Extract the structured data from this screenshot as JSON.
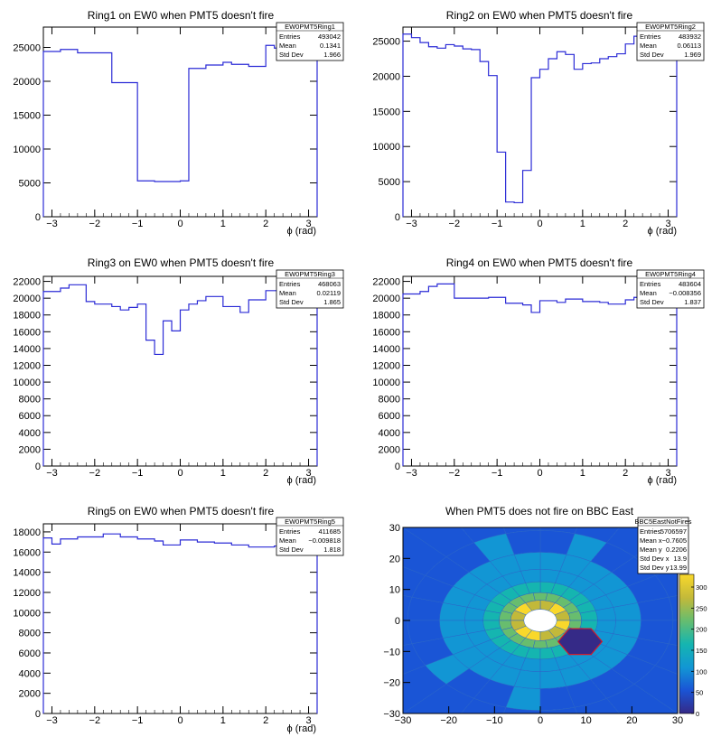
{
  "chart_data": [
    {
      "type": "histogram",
      "title": "Ring1 on EW0 when PMT5 doesn't fire",
      "xlabel": "ϕ (rad)",
      "xlim": [
        -3.2,
        3.2
      ],
      "ylim": [
        0,
        28000
      ],
      "xticks": [
        "−3",
        "−2",
        "−1",
        "0",
        "1",
        "2",
        "3"
      ],
      "yticks": [
        "0",
        "5000",
        "10000",
        "15000",
        "20000",
        "25000"
      ],
      "bin_edges": [
        -3.2,
        -2.8,
        -2.4,
        -1.6,
        -1.0,
        -0.6,
        0.0,
        0.2,
        0.6,
        1.0,
        1.2,
        1.6,
        2.0,
        2.2,
        2.8,
        3.2
      ],
      "values": [
        24400,
        24700,
        24200,
        19800,
        5300,
        5200,
        5300,
        21900,
        22400,
        22800,
        22500,
        22200,
        25300,
        24900,
        24800
      ],
      "stats": {
        "name": "EW0PMT5Ring1",
        "rows": [
          [
            "Entries",
            "493042"
          ],
          [
            "Mean",
            "0.1341"
          ],
          [
            "Std Dev",
            "1.966"
          ]
        ]
      }
    },
    {
      "type": "histogram",
      "title": "Ring2 on EW0 when PMT5 doesn't fire",
      "xlabel": "ϕ (rad)",
      "xlim": [
        -3.2,
        3.2
      ],
      "ylim": [
        0,
        27000
      ],
      "xticks": [
        "−3",
        "−2",
        "−1",
        "0",
        "1",
        "2",
        "3"
      ],
      "yticks": [
        "0",
        "5000",
        "10000",
        "15000",
        "20000",
        "25000"
      ],
      "bin_edges": [
        -3.2,
        -3.0,
        -2.8,
        -2.6,
        -2.4,
        -2.2,
        -2.0,
        -1.8,
        -1.6,
        -1.4,
        -1.2,
        -1.0,
        -0.8,
        -0.6,
        -0.4,
        -0.2,
        0.0,
        0.2,
        0.4,
        0.6,
        0.8,
        1.0,
        1.2,
        1.4,
        1.6,
        1.8,
        2.0,
        2.2,
        2.4,
        2.6,
        2.8,
        3.0,
        3.2
      ],
      "values": [
        26000,
        25500,
        24800,
        24200,
        24000,
        24500,
        24300,
        23900,
        23800,
        22100,
        20100,
        9200,
        2100,
        2000,
        6600,
        19800,
        21000,
        22500,
        23500,
        23100,
        21000,
        21800,
        21900,
        22500,
        22800,
        23200,
        24600,
        25700,
        25200,
        25000,
        24800,
        24500
      ],
      "stats": {
        "name": "EW0PMT5Ring2",
        "rows": [
          [
            "Entries",
            "483932"
          ],
          [
            "Mean",
            "0.06113"
          ],
          [
            "Std Dev",
            "1.969"
          ]
        ]
      }
    },
    {
      "type": "histogram",
      "title": "Ring3 on EW0 when PMT5 doesn't fire",
      "xlabel": "ϕ (rad)",
      "xlim": [
        -3.2,
        3.2
      ],
      "ylim": [
        0,
        22600
      ],
      "xticks": [
        "−3",
        "−2",
        "−1",
        "0",
        "1",
        "2",
        "3"
      ],
      "yticks": [
        "0",
        "2000",
        "4000",
        "6000",
        "8000",
        "10000",
        "12000",
        "14000",
        "16000",
        "18000",
        "20000",
        "22000"
      ],
      "bin_edges": [
        -3.2,
        -2.8,
        -2.6,
        -2.2,
        -2.0,
        -1.6,
        -1.4,
        -1.2,
        -1.0,
        -0.8,
        -0.6,
        -0.4,
        -0.2,
        0.0,
        0.2,
        0.4,
        0.6,
        1.0,
        1.4,
        1.6,
        2.0,
        2.4,
        2.8,
        3.2
      ],
      "values": [
        20800,
        21200,
        21600,
        19600,
        19300,
        19000,
        18600,
        18900,
        19300,
        15000,
        13300,
        17300,
        16100,
        18600,
        19300,
        19700,
        20200,
        19000,
        18300,
        19800,
        20900,
        20500,
        21000
      ],
      "stats": {
        "name": "EW0PMT5Ring3",
        "rows": [
          [
            "Entries",
            "468063"
          ],
          [
            "Mean",
            "0.02119"
          ],
          [
            "Std Dev",
            "1.865"
          ]
        ]
      }
    },
    {
      "type": "histogram",
      "title": "Ring4 on EW0 when PMT5 doesn't fire",
      "xlabel": "ϕ (rad)",
      "xlim": [
        -3.2,
        3.2
      ],
      "ylim": [
        0,
        22600
      ],
      "xticks": [
        "−3",
        "−2",
        "−1",
        "0",
        "1",
        "2",
        "3"
      ],
      "yticks": [
        "0",
        "2000",
        "4000",
        "6000",
        "8000",
        "10000",
        "12000",
        "14000",
        "16000",
        "18000",
        "20000",
        "22000"
      ],
      "bin_edges": [
        -3.2,
        -2.8,
        -2.6,
        -2.4,
        -2.0,
        -1.2,
        -0.8,
        -0.4,
        -0.2,
        0.0,
        0.4,
        0.6,
        1.0,
        1.4,
        1.6,
        2.0,
        2.2,
        2.6,
        3.2
      ],
      "values": [
        20500,
        20800,
        21400,
        21700,
        20000,
        20100,
        19400,
        19200,
        18300,
        19700,
        19500,
        19900,
        19600,
        19500,
        19300,
        19800,
        20100,
        20300
      ],
      "stats": {
        "name": "EW0PMT5Ring4",
        "rows": [
          [
            "Entries",
            "483604"
          ],
          [
            "Mean",
            "−0.008356"
          ],
          [
            "Std Dev",
            "1.837"
          ]
        ]
      }
    },
    {
      "type": "histogram",
      "title": "Ring5 on EW0 when PMT5 doesn't fire",
      "xlabel": "ϕ (rad)",
      "xlim": [
        -3.2,
        3.2
      ],
      "ylim": [
        0,
        18800
      ],
      "xticks": [
        "−3",
        "−2",
        "−1",
        "0",
        "1",
        "2",
        "3"
      ],
      "yticks": [
        "0",
        "2000",
        "4000",
        "6000",
        "8000",
        "10000",
        "12000",
        "14000",
        "16000",
        "18000"
      ],
      "bin_edges": [
        -3.2,
        -3.0,
        -2.8,
        -2.4,
        -1.8,
        -1.4,
        -1.0,
        -0.6,
        -0.4,
        0.0,
        0.4,
        0.8,
        1.2,
        1.6,
        2.2,
        2.4,
        3.2
      ],
      "values": [
        17400,
        16800,
        17300,
        17500,
        17800,
        17500,
        17300,
        17100,
        16700,
        17200,
        17000,
        16900,
        16700,
        16500,
        16600,
        17400
      ],
      "stats": {
        "name": "EW0PMT5Ring5",
        "rows": [
          [
            "Entries",
            "411685"
          ],
          [
            "Mean",
            "−0.009818"
          ],
          [
            "Std Dev",
            "1.818"
          ]
        ]
      }
    },
    {
      "type": "heatmap",
      "title": "When PMT5 does not fire on BBC East",
      "xlim": [
        -30,
        30
      ],
      "ylim": [
        -30,
        30
      ],
      "xticks": [
        "−30",
        "−20",
        "−10",
        "0",
        "10",
        "20",
        "30"
      ],
      "yticks": [
        "−30",
        "−20",
        "−10",
        "0",
        "10",
        "20",
        "30"
      ],
      "zlim": [
        0,
        330
      ],
      "zticks": [
        "0",
        "50",
        "100",
        "150",
        "200",
        "250",
        "300"
      ],
      "colors": [
        "#352a87",
        "#1a55d6",
        "#1296d4",
        "#15b5b0",
        "#68bd6e",
        "#c2b93a",
        "#f9d82b"
      ],
      "rings": [
        {
          "r_in": 3.6,
          "r_out": 6.5,
          "segments": 12,
          "level": 300
        },
        {
          "r_in": 6.5,
          "r_out": 9.0,
          "segments": 18,
          "level": 225
        },
        {
          "r_in": 9.0,
          "r_out": 12.5,
          "segments": 24,
          "level": 150
        },
        {
          "r_in": 12.5,
          "r_out": 16.5,
          "segments": 24,
          "level": 115
        },
        {
          "r_in": 16.5,
          "r_out": 22.0,
          "segments": 24,
          "level": 95
        },
        {
          "r_in": 22.0,
          "r_out": 29.0,
          "segments": 24,
          "level": 80
        },
        {
          "r_in": 29.0,
          "r_out": 43.0,
          "segments": 24,
          "level": 70
        }
      ],
      "dead_hexagon": {
        "cx": 8.7,
        "cy": -6.8,
        "r": 4.8,
        "level": 25
      },
      "stats": {
        "name": "BBC5EastNotFires",
        "rows": [
          [
            "Entries",
            "5706597"
          ],
          [
            "Mean x",
            "−0.7605"
          ],
          [
            "Mean y",
            "0.2206"
          ],
          [
            "Std Dev x",
            "13.9"
          ],
          [
            "Std Dev y",
            "13.99"
          ]
        ]
      }
    }
  ]
}
